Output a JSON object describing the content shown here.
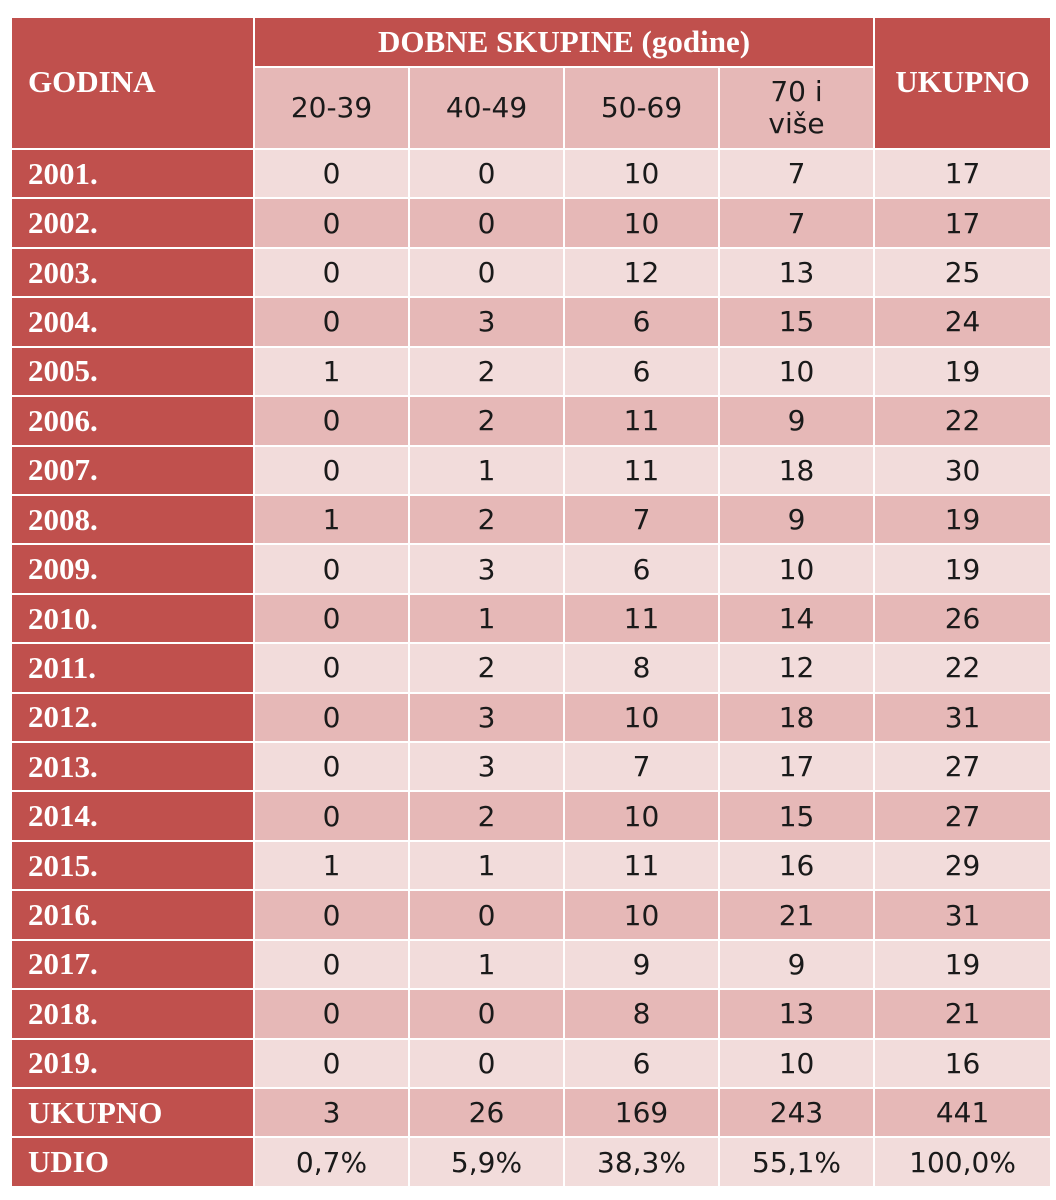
{
  "header": {
    "year_label": "GODINA",
    "group_label": "DOBNE SKUPINE (godine)",
    "columns": [
      "20-39",
      "40-49",
      "50-69",
      "70 i više"
    ],
    "total_label": "UKUPNO"
  },
  "rows": [
    {
      "label": "2001.",
      "values": [
        "0",
        "0",
        "10",
        "7",
        "17"
      ]
    },
    {
      "label": "2002.",
      "values": [
        "0",
        "0",
        "10",
        "7",
        "17"
      ]
    },
    {
      "label": "2003.",
      "values": [
        "0",
        "0",
        "12",
        "13",
        "25"
      ]
    },
    {
      "label": "2004.",
      "values": [
        "0",
        "3",
        "6",
        "15",
        "24"
      ]
    },
    {
      "label": "2005.",
      "values": [
        "1",
        "2",
        "6",
        "10",
        "19"
      ]
    },
    {
      "label": "2006.",
      "values": [
        "0",
        "2",
        "11",
        "9",
        "22"
      ]
    },
    {
      "label": "2007.",
      "values": [
        "0",
        "1",
        "11",
        "18",
        "30"
      ]
    },
    {
      "label": "2008.",
      "values": [
        "1",
        "2",
        "7",
        "9",
        "19"
      ]
    },
    {
      "label": "2009.",
      "values": [
        "0",
        "3",
        "6",
        "10",
        "19"
      ]
    },
    {
      "label": "2010.",
      "values": [
        "0",
        "1",
        "11",
        "14",
        "26"
      ]
    },
    {
      "label": "2011.",
      "values": [
        "0",
        "2",
        "8",
        "12",
        "22"
      ]
    },
    {
      "label": "2012.",
      "values": [
        "0",
        "3",
        "10",
        "18",
        "31"
      ]
    },
    {
      "label": "2013.",
      "values": [
        "0",
        "3",
        "7",
        "17",
        "27"
      ]
    },
    {
      "label": "2014.",
      "values": [
        "0",
        "2",
        "10",
        "15",
        "27"
      ]
    },
    {
      "label": "2015.",
      "values": [
        "1",
        "1",
        "11",
        "16",
        "29"
      ]
    },
    {
      "label": "2016.",
      "values": [
        "0",
        "0",
        "10",
        "21",
        "31"
      ]
    },
    {
      "label": "2017.",
      "values": [
        "0",
        "1",
        "9",
        "9",
        "19"
      ]
    },
    {
      "label": "2018.",
      "values": [
        "0",
        "0",
        "8",
        "13",
        "21"
      ]
    },
    {
      "label": "2019.",
      "values": [
        "0",
        "0",
        "6",
        "10",
        "16"
      ]
    },
    {
      "label": "UKUPNO",
      "values": [
        "3",
        "26",
        "169",
        "243",
        "441"
      ]
    },
    {
      "label": "UDIO",
      "values": [
        "0,7%",
        "5,9%",
        "38,3%",
        "55,1%",
        "100,0%"
      ]
    }
  ],
  "colors": {
    "header_dark": "#c0504d",
    "row_light": "#f2dcdb",
    "row_mid": "#e6b8b7"
  }
}
